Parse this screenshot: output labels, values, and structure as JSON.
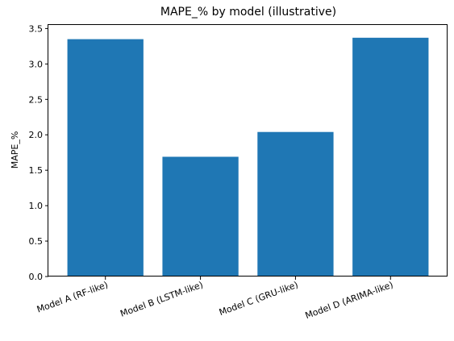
{
  "chart_data": {
    "type": "bar",
    "title": "MAPE_% by model (illustrative)",
    "xlabel": "",
    "ylabel": "MAPE_%",
    "categories": [
      "Model A (RF-like)",
      "Model B (LSTM-like)",
      "Model C (GRU-like)",
      "Model D (ARIMA-like)"
    ],
    "values": [
      3.35,
      1.69,
      2.04,
      3.37
    ],
    "ylim": [
      0,
      3.55
    ],
    "yticks": [
      "0.0",
      "0.5",
      "1.0",
      "1.5",
      "2.0",
      "2.5",
      "3.0",
      "3.5"
    ],
    "bar_color": "#1f77b4",
    "grid": false,
    "legend": "none"
  }
}
